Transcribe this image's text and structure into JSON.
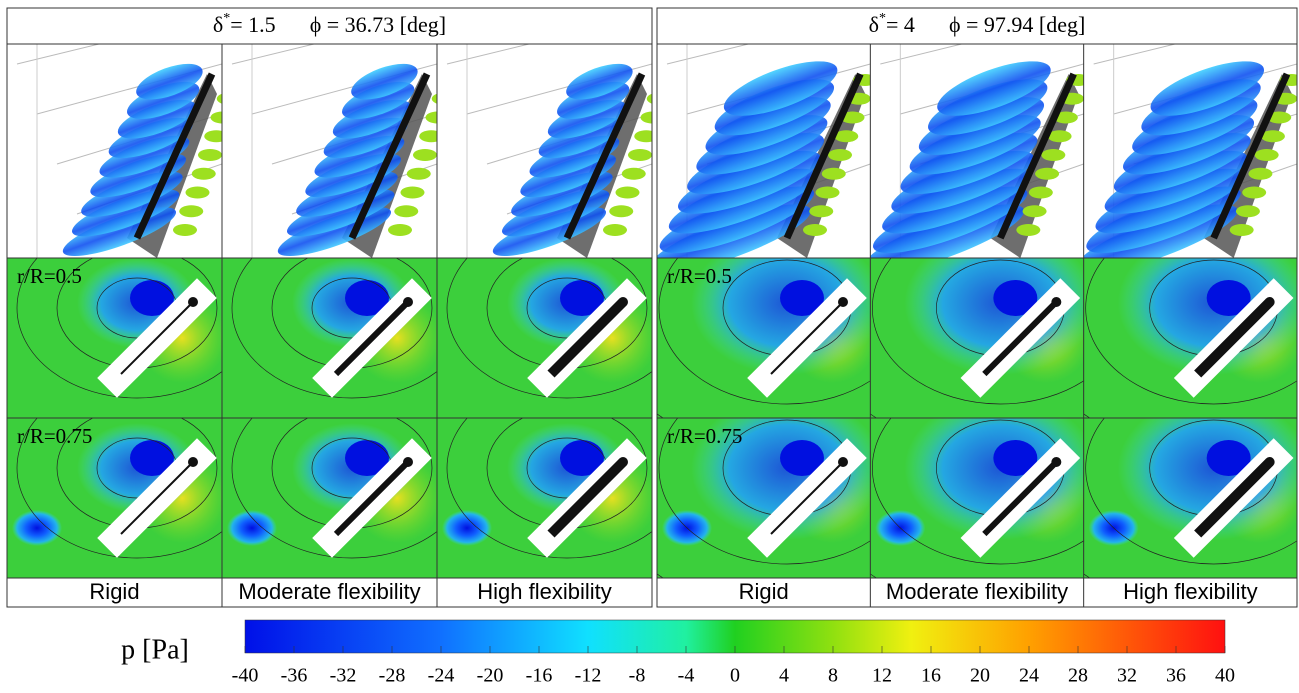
{
  "panels": [
    {
      "header": {
        "delta": "δ",
        "sup": "*",
        "delta_value": "= 1.5",
        "phi": "ϕ = 36.73 [deg]"
      },
      "row_labels": [
        "r/R=0.5",
        "r/R=0.75"
      ],
      "columns": [
        "Rigid",
        "Moderate flexibility",
        "High flexibility"
      ]
    },
    {
      "header": {
        "delta": "δ",
        "sup": "*",
        "delta_value": "= 4",
        "phi": "ϕ = 97.94 [deg]"
      },
      "row_labels": [
        "r/R=0.5",
        "r/R=0.75"
      ],
      "columns": [
        "Rigid",
        "Moderate flexibility",
        "High flexibility"
      ]
    }
  ],
  "colorbar": {
    "label": "p [Pa]",
    "lim": [
      -40,
      40
    ],
    "ticks": [
      -40,
      -36,
      -32,
      -28,
      -24,
      -20,
      -16,
      -12,
      -8,
      -4,
      0,
      4,
      8,
      12,
      16,
      20,
      24,
      28,
      32,
      36,
      40
    ]
  }
}
